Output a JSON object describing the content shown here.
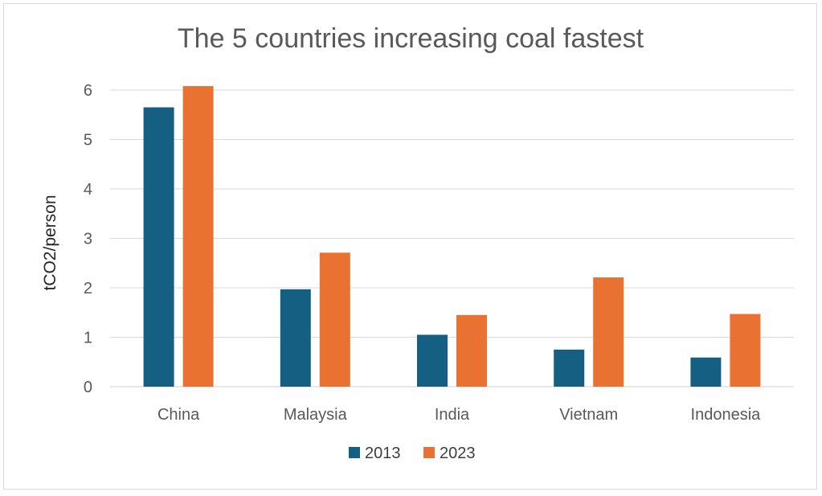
{
  "chart_data": {
    "type": "bar",
    "title": "The 5 countries increasing coal fastest",
    "xlabel": "",
    "ylabel": "tCO2/person",
    "categories": [
      "China",
      "Malaysia",
      "India",
      "Vietnam",
      "Indonesia"
    ],
    "series": [
      {
        "name": "2013",
        "values": [
          5.65,
          1.97,
          1.05,
          0.75,
          0.59
        ]
      },
      {
        "name": "2023",
        "values": [
          6.08,
          2.71,
          1.45,
          2.21,
          1.47
        ]
      }
    ],
    "yticks": [
      "0",
      "1",
      "2",
      "3",
      "4",
      "5",
      "6"
    ],
    "ylim": [
      0,
      6
    ],
    "grid": true,
    "legend": "bottom-center",
    "colors": {
      "2013": "#156082",
      "2023": "#e97132"
    }
  }
}
